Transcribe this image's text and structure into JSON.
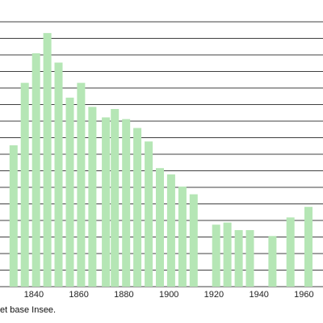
{
  "chart_data": {
    "type": "bar",
    "title": "",
    "xlabel": "",
    "ylabel": "",
    "x": [
      1831,
      1836,
      1841,
      1846,
      1851,
      1856,
      1861,
      1866,
      1872,
      1876,
      1881,
      1886,
      1891,
      1896,
      1901,
      1906,
      1911,
      1921,
      1926,
      1931,
      1936,
      1946,
      1954,
      1962
    ],
    "values": [
      1035,
      1183,
      1253,
      1301,
      1231,
      1148,
      1183,
      1126,
      1101,
      1121,
      1097,
      1076,
      1044,
      981,
      966,
      937,
      919,
      847,
      852,
      834,
      834,
      820,
      864,
      889
    ],
    "xlim": [
      1830,
      1962
    ],
    "ylim": [
      700,
      1320
    ],
    "x_ticks": [
      1840,
      1860,
      1880,
      1900,
      1920,
      1940,
      1960
    ],
    "grid": true,
    "bar_color": "#b5e6b5",
    "grid_color": "#000000"
  },
  "source_text": "et base Insee."
}
